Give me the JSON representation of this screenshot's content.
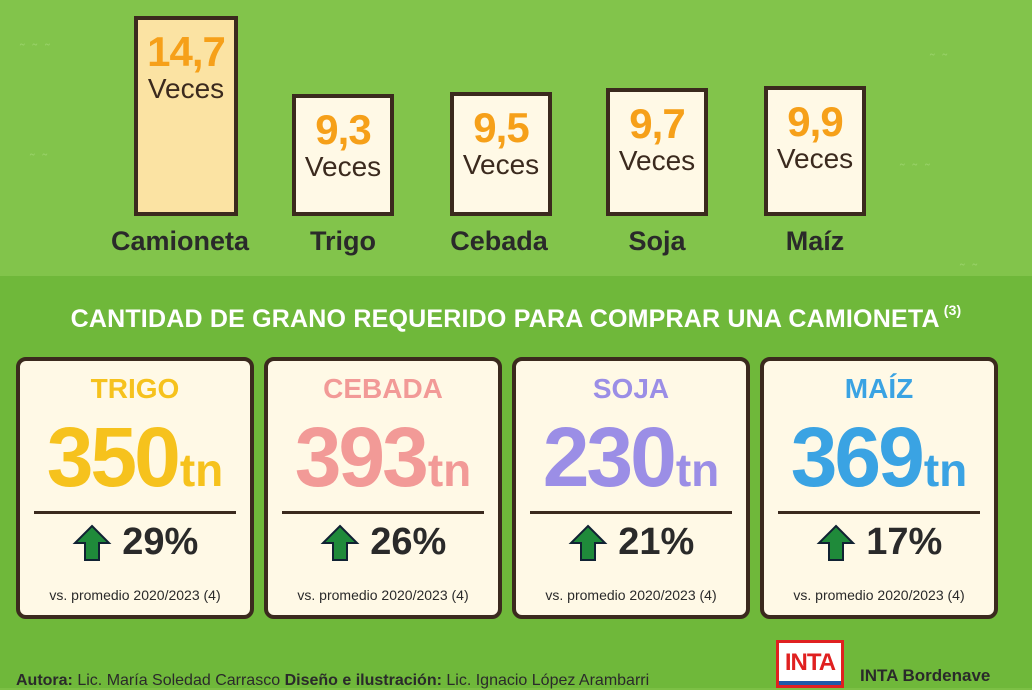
{
  "chart_data": [
    {
      "type": "bar",
      "categories": [
        "Camioneta",
        "Trigo",
        "Cebada",
        "Soja",
        "Maíz"
      ],
      "values": [
        14.7,
        9.3,
        9.5,
        9.7,
        9.9
      ],
      "value_labels": [
        "14,7",
        "9,3",
        "9,5",
        "9,7",
        "9,9"
      ],
      "unit": "Veces",
      "highlight_color": "#fbe3a3",
      "box_color": "#fff9e6",
      "value_color": "#f6a019"
    },
    {
      "type": "table",
      "title": "CANTIDAD DE GRANO REQUERIDO PARA COMPRAR UNA CAMIONETA",
      "title_note": "(3)",
      "unit": "tn",
      "rows": [
        {
          "grain": "TRIGO",
          "amount": 350,
          "change_pct": "29%",
          "note": "vs. promedio 2020/2023 (4)",
          "color": "#f6c21d"
        },
        {
          "grain": "CEBADA",
          "amount": 393,
          "change_pct": "26%",
          "note": "vs. promedio 2020/2023 (4)",
          "color": "#f29a97"
        },
        {
          "grain": "SOJA",
          "amount": 230,
          "change_pct": "21%",
          "note": "vs. promedio 2020/2023 (4)",
          "color": "#9b8ee6"
        },
        {
          "grain": "MAÍZ",
          "amount": 369,
          "change_pct": "17%",
          "note": "vs. promedio 2020/2023 (4)",
          "color": "#3aa3e3"
        }
      ]
    }
  ],
  "bars": [
    {
      "value": "14,7",
      "unit": "Veces",
      "label": "Camioneta"
    },
    {
      "value": "9,3",
      "unit": "Veces",
      "label": "Trigo"
    },
    {
      "value": "9,5",
      "unit": "Veces",
      "label": "Cebada"
    },
    {
      "value": "9,7",
      "unit": "Veces",
      "label": "Soja"
    },
    {
      "value": "9,9",
      "unit": "Veces",
      "label": "Maíz"
    }
  ],
  "section": {
    "title": "CANTIDAD DE GRANO REQUERIDO PARA COMPRAR UNA CAMIONETA",
    "note": "(3)"
  },
  "cards": [
    {
      "name": "TRIGO",
      "amount": "350",
      "unit": "tn",
      "pct": "29%",
      "note": "vs. promedio 2020/2023 (4)"
    },
    {
      "name": "CEBADA",
      "amount": "393",
      "unit": "tn",
      "pct": "26%",
      "note": "vs. promedio 2020/2023 (4)"
    },
    {
      "name": "SOJA",
      "amount": "230",
      "unit": "tn",
      "pct": "21%",
      "note": "vs. promedio 2020/2023 (4)"
    },
    {
      "name": "MAÍZ",
      "amount": "369",
      "unit": "tn",
      "pct": "17%",
      "note": "vs. promedio 2020/2023 (4)"
    }
  ],
  "footer": {
    "author_label": "Autora:",
    "author": "Lic. María Soledad Carrasco",
    "design_label": "Diseño e ilustración:",
    "designer": "Lic. Ignacio López Arambarri",
    "logo_text": "INTA",
    "org": "INTA Bordenave"
  },
  "colors": {
    "arrow": "#1f8a3a",
    "border": "#3b2a1e"
  }
}
